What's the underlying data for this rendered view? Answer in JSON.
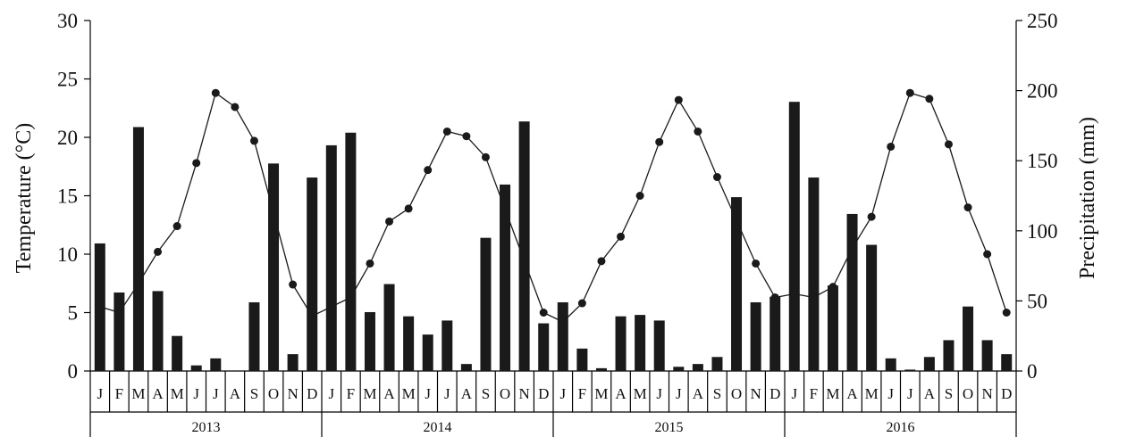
{
  "chart_data": {
    "type": "bar+line",
    "months": [
      "J",
      "F",
      "M",
      "A",
      "M",
      "J",
      "J",
      "A",
      "S",
      "O",
      "N",
      "D"
    ],
    "years": [
      "2013",
      "2014",
      "2015",
      "2016"
    ],
    "y_left": {
      "label": "Temperature (°C)",
      "lim": [
        0,
        30
      ],
      "ticks": [
        "0",
        "5",
        "10",
        "15",
        "20",
        "25",
        "30"
      ]
    },
    "y_right": {
      "label": "Precipitation (mm)",
      "lim": [
        0,
        250
      ],
      "ticks": [
        "0",
        "50",
        "100",
        "150",
        "200",
        "250"
      ]
    },
    "series": [
      {
        "kind": "bar",
        "axis": "right",
        "color": "#1a1a1a",
        "values": [
          91,
          56,
          174,
          57,
          25,
          4,
          9,
          0,
          49,
          148,
          12,
          138,
          161,
          170,
          42,
          62,
          39,
          26,
          36,
          5,
          95,
          133,
          178,
          34,
          49,
          16,
          2,
          39,
          40,
          36,
          3,
          5,
          10,
          124,
          49,
          53,
          192,
          138,
          61,
          112,
          90,
          9,
          1,
          10,
          22,
          46,
          22,
          12
        ]
      },
      {
        "kind": "line",
        "axis": "left",
        "color": "#1a1a1a",
        "values": [
          5.5,
          5.0,
          7.5,
          10.2,
          12.4,
          17.8,
          23.8,
          22.6,
          19.7,
          null,
          7.4,
          4.7,
          null,
          6.3,
          9.2,
          12.8,
          13.9,
          17.2,
          20.5,
          20.1,
          18.3,
          null,
          null,
          5.0,
          4.2,
          5.8,
          9.4,
          11.5,
          15.0,
          19.6,
          23.2,
          20.5,
          16.6,
          null,
          9.2,
          6.3,
          6.6,
          6.3,
          7.2,
          10.5,
          13.2,
          19.2,
          23.8,
          23.3,
          19.4,
          14.0,
          10.0,
          5.0
        ]
      }
    ],
    "grid": false,
    "legend": "none"
  }
}
